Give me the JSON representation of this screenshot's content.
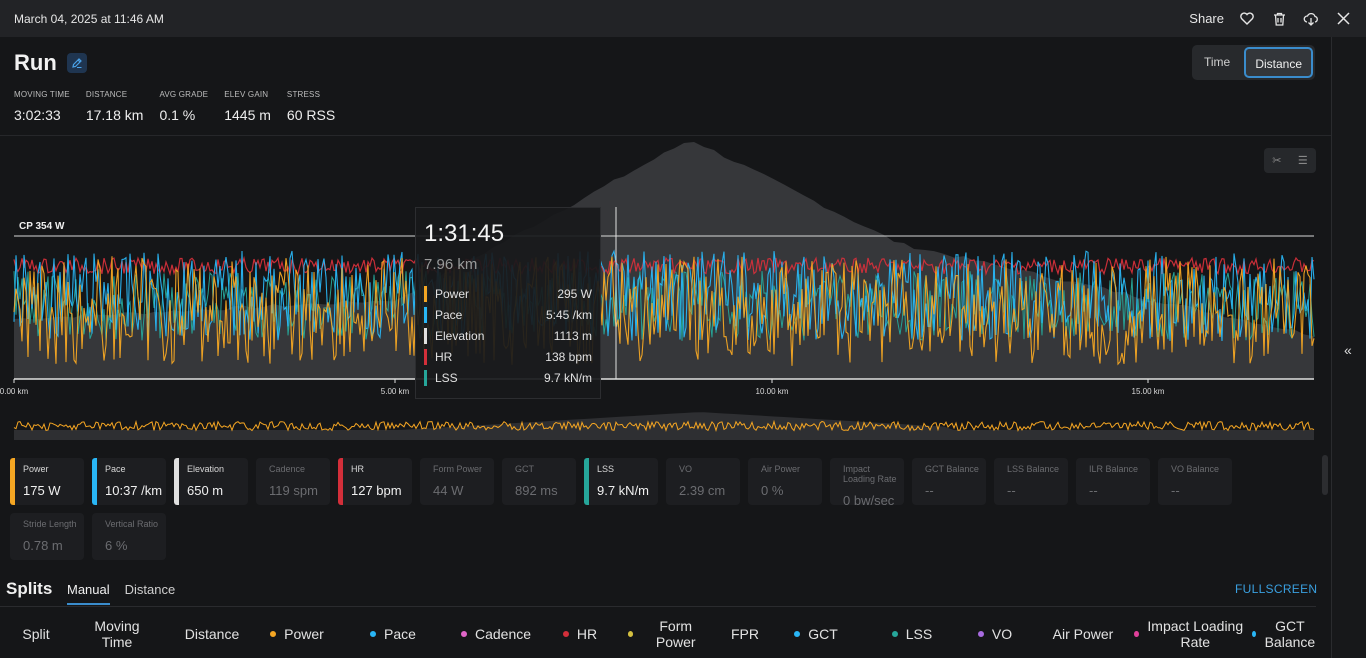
{
  "topbar": {
    "date": "March 04, 2025 at 11:46 AM",
    "share_label": "Share"
  },
  "activity": {
    "title": "Run"
  },
  "summary": [
    {
      "label": "MOVING TIME",
      "value": "3:02:33"
    },
    {
      "label": "DISTANCE",
      "value": "17.18 km"
    },
    {
      "label": "AVG GRADE",
      "value": "0.1 %"
    },
    {
      "label": "ELEV GAIN",
      "value": "1445 m"
    },
    {
      "label": "STRESS",
      "value": "60 RSS"
    }
  ],
  "view_toggle": {
    "time_label": "Time",
    "distance_label": "Distance",
    "selected": "Distance"
  },
  "chart": {
    "cp_label": "CP 354 W",
    "x_ticks": [
      "0.00 km",
      "5.00 km",
      "10.00 km",
      "15.00 km"
    ],
    "colors": {
      "power": "#f5a623",
      "pace": "#29b6f6",
      "elevation": "#cfcfcf",
      "hr": "#d32f3a",
      "lss": "#26a69a"
    }
  },
  "tooltip": {
    "time": "1:31:45",
    "distance": "7.96 km",
    "rows": [
      {
        "key": "Power",
        "value": "295 W",
        "color": "#f5a623"
      },
      {
        "key": "Pace",
        "value": "5:45 /km",
        "color": "#29b6f6"
      },
      {
        "key": "Elevation",
        "value": "1113 m",
        "color": "#e0e0e0"
      },
      {
        "key": "HR",
        "value": "138 bpm",
        "color": "#d32f3a"
      },
      {
        "key": "LSS",
        "value": "9.7 kN/m",
        "color": "#26a69a"
      }
    ]
  },
  "metrics": [
    {
      "label": "Power",
      "value": "175 W",
      "color": "#f5a623",
      "active": true
    },
    {
      "label": "Pace",
      "value": "10:37 /km",
      "color": "#29b6f6",
      "active": true
    },
    {
      "label": "Elevation",
      "value": "650 m",
      "color": "#e0e0e0",
      "active": true
    },
    {
      "label": "Cadence",
      "value": "119 spm",
      "color": "",
      "active": false
    },
    {
      "label": "HR",
      "value": "127 bpm",
      "color": "#d32f3a",
      "active": true
    },
    {
      "label": "Form Power",
      "value": "44 W",
      "color": "",
      "active": false
    },
    {
      "label": "GCT",
      "value": "892 ms",
      "color": "",
      "active": false
    },
    {
      "label": "LSS",
      "value": "9.7 kN/m",
      "color": "#26a69a",
      "active": true
    },
    {
      "label": "VO",
      "value": "2.39 cm",
      "color": "",
      "active": false
    },
    {
      "label": "Air Power",
      "value": "0 %",
      "color": "",
      "active": false
    },
    {
      "label": "Impact Loading Rate",
      "value": "0 bw/sec",
      "color": "",
      "active": false
    },
    {
      "label": "GCT Balance",
      "value": "--",
      "color": "",
      "active": false
    },
    {
      "label": "LSS Balance",
      "value": "--",
      "color": "",
      "active": false
    },
    {
      "label": "ILR Balance",
      "value": "--",
      "color": "",
      "active": false
    },
    {
      "label": "VO Balance",
      "value": "--",
      "color": "",
      "active": false
    },
    {
      "label": "Stride Length",
      "value": "0.78 m",
      "color": "",
      "active": false
    },
    {
      "label": "Vertical Ratio",
      "value": "6 %",
      "color": "",
      "active": false
    }
  ],
  "splits": {
    "title": "Splits",
    "tabs": [
      "Manual",
      "Distance"
    ],
    "active_tab": "Manual",
    "fullscreen_label": "FULLSCREEN",
    "columns": [
      {
        "label": "Split",
        "dot": ""
      },
      {
        "label": "Moving Time",
        "dot": ""
      },
      {
        "label": "Distance",
        "dot": ""
      },
      {
        "label": "Power",
        "dot": "#f5a623"
      },
      {
        "label": "Pace",
        "dot": "#29b6f6"
      },
      {
        "label": "Cadence",
        "dot": "#e066c8"
      },
      {
        "label": "HR",
        "dot": "#d32f3a"
      },
      {
        "label": "Form Power",
        "dot": "#d4c040"
      },
      {
        "label": "FPR",
        "dot": ""
      },
      {
        "label": "GCT",
        "dot": "#29b6f6"
      },
      {
        "label": "LSS",
        "dot": "#26a69a"
      },
      {
        "label": "VO",
        "dot": "#a86be0"
      },
      {
        "label": "Air Power",
        "dot": ""
      },
      {
        "label": "Impact Loading Rate",
        "dot": "#e0409a"
      },
      {
        "label": "GCT Balance",
        "dot": "#29b6f6"
      }
    ]
  }
}
